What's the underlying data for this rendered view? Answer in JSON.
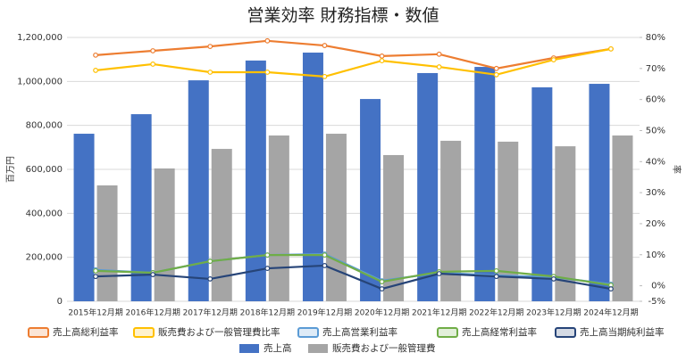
{
  "chart_data": {
    "type": "combo",
    "title": "営業効率 財務指標・数値",
    "y_label": "百万円",
    "y2_label": "率",
    "categories": [
      "2015年12月期",
      "2016年12月期",
      "2017年12月期",
      "2018年12月期",
      "2019年12月期",
      "2020年12月期",
      "2021年12月期",
      "2022年12月期",
      "2023年12月期",
      "2024年12月期"
    ],
    "ylim": [
      0,
      1200000
    ],
    "yticks": [
      {
        "value": 0,
        "label": "0"
      },
      {
        "value": 200000,
        "label": "200,000"
      },
      {
        "value": 400000,
        "label": "400,000"
      },
      {
        "value": 600000,
        "label": "600,000"
      },
      {
        "value": 800000,
        "label": "800,000"
      },
      {
        "value": 1000000,
        "label": "1,000,000"
      },
      {
        "value": 1200000,
        "label": "1,200,000"
      }
    ],
    "y2lim": [
      -5,
      80
    ],
    "y2ticks": [
      {
        "value": -5,
        "label": "-5%"
      },
      {
        "value": 0,
        "label": "0%"
      },
      {
        "value": 10,
        "label": "10%"
      },
      {
        "value": 20,
        "label": "20%"
      },
      {
        "value": 30,
        "label": "30%"
      },
      {
        "value": 40,
        "label": "40%"
      },
      {
        "value": 50,
        "label": "50%"
      },
      {
        "value": 60,
        "label": "60%"
      },
      {
        "value": 70,
        "label": "70%"
      },
      {
        "value": 80,
        "label": "80%"
      }
    ],
    "series": [
      {
        "name": "売上高総利益率",
        "type": "line",
        "axis": "y2",
        "color": "#ED7D31",
        "values": [
          74.3,
          75.7,
          77.1,
          78.9,
          77.4,
          74.0,
          74.6,
          70.0,
          73.4,
          76.3
        ]
      },
      {
        "name": "販売費および一般管理費比率",
        "type": "line",
        "axis": "y2",
        "color": "#FFC000",
        "values": [
          69.4,
          71.4,
          68.8,
          68.8,
          67.4,
          72.5,
          70.5,
          68.0,
          72.8,
          76.3
        ]
      },
      {
        "name": "売上高営業利益率",
        "type": "line",
        "axis": "y2",
        "color": "#5B9BD5",
        "values": [
          5.1,
          4.2,
          7.9,
          9.9,
          10.2,
          1.6,
          4.2,
          3.3,
          2.8,
          0.5
        ]
      },
      {
        "name": "売上高経常利益率",
        "type": "line",
        "axis": "y2",
        "color": "#70AD47",
        "values": [
          4.8,
          4.2,
          7.9,
          9.9,
          9.9,
          1.3,
          4.5,
          4.8,
          3.0,
          0.2
        ]
      },
      {
        "name": "売上高当期純利益率",
        "type": "line",
        "axis": "y2",
        "color": "#264478",
        "values": [
          3.0,
          3.6,
          2.2,
          5.6,
          6.5,
          -1.0,
          3.9,
          3.0,
          2.2,
          -1.0
        ]
      },
      {
        "name": "売上高",
        "type": "bar",
        "color": "#4472C4",
        "values": [
          762000,
          851000,
          1005000,
          1095000,
          1131000,
          920000,
          1038000,
          1066000,
          973000,
          989000
        ]
      },
      {
        "name": "販売費および一般管理費",
        "type": "bar",
        "color": "#A5A5A5",
        "values": [
          527000,
          604000,
          693000,
          754000,
          762000,
          665000,
          730000,
          726000,
          705000,
          754000
        ]
      }
    ],
    "grid": true
  }
}
